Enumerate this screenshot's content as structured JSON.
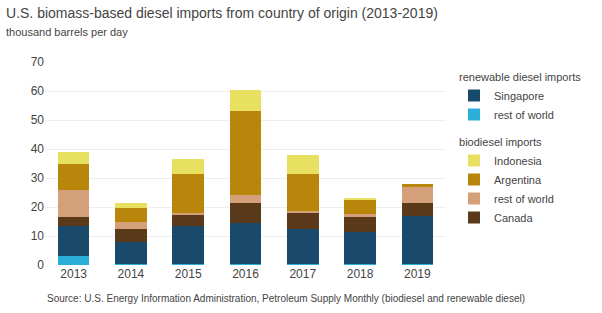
{
  "chart_data": {
    "type": "bar",
    "stacked": true,
    "title": "U.S. biomass-based diesel imports from country of origin (2013-2019)",
    "subtitle": "thousand barrels per day",
    "categories": [
      "2013",
      "2014",
      "2015",
      "2016",
      "2017",
      "2018",
      "2019"
    ],
    "series": [
      {
        "name": "rest of world",
        "group": "renewable diesel imports",
        "color": "#2ab0d8",
        "values": [
          3.0,
          0.5,
          0.5,
          0.5,
          0.5,
          0.5,
          0.3
        ]
      },
      {
        "name": "Singapore",
        "group": "renewable diesel imports",
        "color": "#1a4a6b",
        "values": [
          10.5,
          7.5,
          13.0,
          14.0,
          12.0,
          11.0,
          16.5
        ]
      },
      {
        "name": "Canada",
        "group": "biodiesel imports",
        "color": "#5a3a1a",
        "values": [
          3.0,
          4.5,
          4.0,
          7.0,
          5.5,
          5.0,
          4.5
        ]
      },
      {
        "name": "rest of world",
        "group": "biodiesel imports",
        "color": "#d4a07a",
        "values": [
          9.5,
          2.5,
          0.5,
          2.5,
          0.5,
          1.0,
          5.5
        ]
      },
      {
        "name": "Argentina",
        "group": "biodiesel imports",
        "color": "#b8860b",
        "values": [
          9.0,
          4.5,
          13.5,
          29.0,
          13.0,
          5.0,
          1.0
        ]
      },
      {
        "name": "Indonesia",
        "group": "biodiesel imports",
        "color": "#e8e060",
        "values": [
          4.0,
          2.0,
          5.0,
          7.5,
          6.5,
          0.5,
          0.0
        ]
      }
    ],
    "ylim": [
      0,
      70
    ],
    "yticks": [
      0,
      10,
      20,
      30,
      40,
      50,
      60,
      70
    ],
    "grid": true,
    "legend": "right",
    "annotations": [
      "Source: U.S. Energy Information Administration, Petroleum Supply Monthly (biodiesel and renewable diesel)"
    ]
  }
}
